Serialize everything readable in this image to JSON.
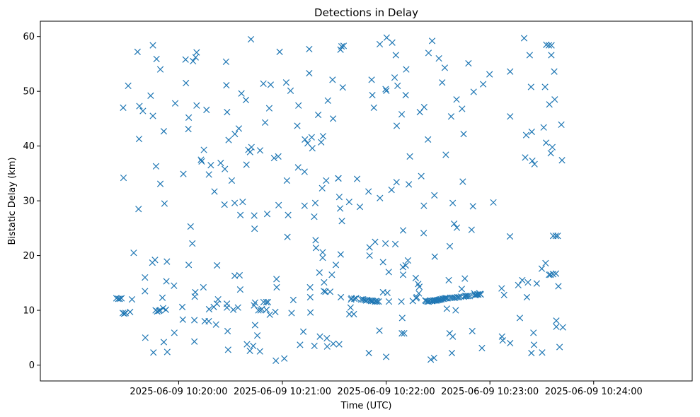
{
  "chart_data": {
    "type": "scatter",
    "title": "Detections in Delay",
    "xlabel": "Time (UTC)",
    "ylabel": "Bistatic Delay (km)",
    "marker": "x",
    "color": "#1f77b4",
    "grid": false,
    "x_unit": "seconds after 2025-06-09 10:20:00 UTC",
    "xlim": [
      -80,
      297
    ],
    "ylim": [
      -2.9,
      62.8
    ],
    "x_ticks": [
      {
        "value": 0,
        "label": "2025-06-09 10:20:00"
      },
      {
        "value": 60,
        "label": "2025-06-09 10:21:00"
      },
      {
        "value": 120,
        "label": "2025-06-09 10:22:00"
      },
      {
        "value": 180,
        "label": "2025-06-09 10:23:00"
      },
      {
        "value": 240,
        "label": "2025-06-09 10:24:00"
      }
    ],
    "y_ticks": [
      0,
      10,
      20,
      30,
      40,
      50,
      60
    ],
    "points": [
      [
        -36.0,
        12.2
      ],
      [
        -34.9,
        12.1
      ],
      [
        -34.1,
        12.1
      ],
      [
        -33.1,
        12.2
      ],
      [
        -32.3,
        9.5
      ],
      [
        -31.5,
        9.4
      ],
      [
        -30.7,
        9.5
      ],
      [
        -31.9,
        34.2
      ],
      [
        -32.1,
        47.0
      ],
      [
        -29.2,
        51.0
      ],
      [
        -28.1,
        9.7
      ],
      [
        -27.0,
        12.0
      ],
      [
        -26.0,
        20.5
      ],
      [
        -23.8,
        57.2
      ],
      [
        -23.2,
        28.5
      ],
      [
        -22.9,
        41.3
      ],
      [
        -22.7,
        47.3
      ],
      [
        -20.7,
        46.4
      ],
      [
        -19.5,
        13.5
      ],
      [
        -19.5,
        16.0
      ],
      [
        -19.3,
        5.0
      ],
      [
        -16.2,
        49.2
      ],
      [
        -15.2,
        18.7
      ],
      [
        -14.9,
        45.5
      ],
      [
        -14.9,
        58.4
      ],
      [
        -14.6,
        2.3
      ],
      [
        -13.7,
        19.2
      ],
      [
        -13.3,
        10.0
      ],
      [
        -13.1,
        36.3
      ],
      [
        -12.8,
        55.9
      ],
      [
        -12.4,
        9.8
      ],
      [
        -11.4,
        9.9
      ],
      [
        -10.8,
        10.0
      ],
      [
        -10.6,
        54.0
      ],
      [
        -10.6,
        33.1
      ],
      [
        -9.4,
        12.3
      ],
      [
        -9.0,
        10.4
      ],
      [
        -8.6,
        42.7
      ],
      [
        -8.6,
        4.2
      ],
      [
        -8.2,
        29.5
      ],
      [
        -7.4,
        10.1
      ],
      [
        -7.1,
        15.3
      ],
      [
        -6.8,
        18.9
      ],
      [
        -6.6,
        2.4
      ],
      [
        -2.7,
        14.5
      ],
      [
        -2.5,
        5.9
      ],
      [
        -2.0,
        47.8
      ],
      [
        2.1,
        10.6
      ],
      [
        2.4,
        8.3
      ],
      [
        2.7,
        34.9
      ],
      [
        4.0,
        55.8
      ],
      [
        4.2,
        51.5
      ],
      [
        5.8,
        18.3
      ],
      [
        5.6,
        43.1
      ],
      [
        5.8,
        45.2
      ],
      [
        6.9,
        25.3
      ],
      [
        7.9,
        22.2
      ],
      [
        8.3,
        55.5
      ],
      [
        9.1,
        4.3
      ],
      [
        9.1,
        8.2
      ],
      [
        9.3,
        12.5
      ],
      [
        9.6,
        13.3
      ],
      [
        9.8,
        56.2
      ],
      [
        10.4,
        47.4
      ],
      [
        10.4,
        57.1
      ],
      [
        12.9,
        37.5
      ],
      [
        13.3,
        37.2
      ],
      [
        14.3,
        14.2
      ],
      [
        14.6,
        39.3
      ],
      [
        15.1,
        8.0
      ],
      [
        16.1,
        46.6
      ],
      [
        17.4,
        8.0
      ],
      [
        17.5,
        34.8
      ],
      [
        17.6,
        10.2
      ],
      [
        18.6,
        36.5
      ],
      [
        20.3,
        10.6
      ],
      [
        20.7,
        31.7
      ],
      [
        21.6,
        7.4
      ],
      [
        22.1,
        11.2
      ],
      [
        22.2,
        18.2
      ],
      [
        22.8,
        12.0
      ],
      [
        24.3,
        36.9
      ],
      [
        26.5,
        29.3
      ],
      [
        26.7,
        35.8
      ],
      [
        27.4,
        55.4
      ],
      [
        27.6,
        51.1
      ],
      [
        27.9,
        11.2
      ],
      [
        27.9,
        10.5
      ],
      [
        28.0,
        46.2
      ],
      [
        28.3,
        6.2
      ],
      [
        28.6,
        2.8
      ],
      [
        28.9,
        41.1
      ],
      [
        30.7,
        33.7
      ],
      [
        31.6,
        10.1
      ],
      [
        32.4,
        16.3
      ],
      [
        32.4,
        29.6
      ],
      [
        32.5,
        42.2
      ],
      [
        34.3,
        10.5
      ],
      [
        34.8,
        43.2
      ],
      [
        35.2,
        16.4
      ],
      [
        35.6,
        13.8
      ],
      [
        35.7,
        27.4
      ],
      [
        36.3,
        49.6
      ],
      [
        37.0,
        29.8
      ],
      [
        38.9,
        48.4
      ],
      [
        39.2,
        36.6
      ],
      [
        39.5,
        3.8
      ],
      [
        40.3,
        39.3
      ],
      [
        41.2,
        2.6
      ],
      [
        41.3,
        38.9
      ],
      [
        41.8,
        59.5
      ],
      [
        42.1,
        39.8
      ],
      [
        43.1,
        3.5
      ],
      [
        43.6,
        10.9
      ],
      [
        43.7,
        27.3
      ],
      [
        43.9,
        24.9
      ],
      [
        44.2,
        11.4
      ],
      [
        44.2,
        7.3
      ],
      [
        45.5,
        5.4
      ],
      [
        46.1,
        10.0
      ],
      [
        47.0,
        2.5
      ],
      [
        47.1,
        39.2
      ],
      [
        47.4,
        10.0
      ],
      [
        48.1,
        10.2
      ],
      [
        49.0,
        51.4
      ],
      [
        49.1,
        11.5
      ],
      [
        50.0,
        44.3
      ],
      [
        50.7,
        11.5
      ],
      [
        50.8,
        10.1
      ],
      [
        51.2,
        27.6
      ],
      [
        51.6,
        11.5
      ],
      [
        52.4,
        46.9
      ],
      [
        52.7,
        9.2
      ],
      [
        53.2,
        51.2
      ],
      [
        55.2,
        37.8
      ],
      [
        55.9,
        9.7
      ],
      [
        56.2,
        0.8
      ],
      [
        56.6,
        15.7
      ],
      [
        56.7,
        14.2
      ],
      [
        57.6,
        38.1
      ],
      [
        57.8,
        29.2
      ],
      [
        58.4,
        57.2
      ],
      [
        61.1,
        1.2
      ],
      [
        62.2,
        51.6
      ],
      [
        62.6,
        33.7
      ],
      [
        62.9,
        23.4
      ],
      [
        63.3,
        27.4
      ],
      [
        64.7,
        50.1
      ],
      [
        65.3,
        9.5
      ],
      [
        66.3,
        11.9
      ],
      [
        68.6,
        43.7
      ],
      [
        69.1,
        36.1
      ],
      [
        69.3,
        47.4
      ],
      [
        70.2,
        3.7
      ],
      [
        72.1,
        6.1
      ],
      [
        72.8,
        29.1
      ],
      [
        72.8,
        35.3
      ],
      [
        73.0,
        41.2
      ],
      [
        74.6,
        40.5
      ],
      [
        75.5,
        57.7
      ],
      [
        75.5,
        53.3
      ],
      [
        76.0,
        14.2
      ],
      [
        76.1,
        12.4
      ],
      [
        76.2,
        9.6
      ],
      [
        76.9,
        41.6
      ],
      [
        77.3,
        39.6
      ],
      [
        78.4,
        27.1
      ],
      [
        78.5,
        3.5
      ],
      [
        79.0,
        29.6
      ],
      [
        79.2,
        22.8
      ],
      [
        79.4,
        21.4
      ],
      [
        80.7,
        45.7
      ],
      [
        81.4,
        16.9
      ],
      [
        81.7,
        5.2
      ],
      [
        82.4,
        40.7
      ],
      [
        83.0,
        32.3
      ],
      [
        83.3,
        19.6
      ],
      [
        83.3,
        20.6
      ],
      [
        83.5,
        41.8
      ],
      [
        84.0,
        13.5
      ],
      [
        84.1,
        15.1
      ],
      [
        84.9,
        13.4
      ],
      [
        85.3,
        33.7
      ],
      [
        85.7,
        4.9
      ],
      [
        85.9,
        3.4
      ],
      [
        86.3,
        48.3
      ],
      [
        87.6,
        13.4
      ],
      [
        88.6,
        16.5
      ],
      [
        89.0,
        52.1
      ],
      [
        89.3,
        45.0
      ],
      [
        89.4,
        3.9
      ],
      [
        90.9,
        18.3
      ],
      [
        92.3,
        34.1
      ],
      [
        92.4,
        34.1
      ],
      [
        92.8,
        3.8
      ],
      [
        92.9,
        30.7
      ],
      [
        93.4,
        28.6
      ],
      [
        93.6,
        57.6
      ],
      [
        93.7,
        20.2
      ],
      [
        93.8,
        12.4
      ],
      [
        94.2,
        58.2
      ],
      [
        94.4,
        26.3
      ],
      [
        94.9,
        50.7
      ],
      [
        95.4,
        58.3
      ],
      [
        98.6,
        29.8
      ],
      [
        98.7,
        9.3
      ],
      [
        99.4,
        10.5
      ],
      [
        99.7,
        12.0
      ],
      [
        100.0,
        12.2
      ],
      [
        101.3,
        9.3
      ],
      [
        101.6,
        12.1
      ],
      [
        102.6,
        12.2
      ],
      [
        103.2,
        34.0
      ],
      [
        104.8,
        28.9
      ],
      [
        105.6,
        12.0
      ],
      [
        106.6,
        12.0
      ],
      [
        107.5,
        11.9
      ],
      [
        108.4,
        11.8
      ],
      [
        109.1,
        11.9
      ],
      [
        109.8,
        31.7
      ],
      [
        110.0,
        2.2
      ],
      [
        110.4,
        11.8
      ],
      [
        110.4,
        21.5
      ],
      [
        110.4,
        20.0
      ],
      [
        111.3,
        11.7
      ],
      [
        111.6,
        11.8
      ],
      [
        111.6,
        52.1
      ],
      [
        112.0,
        49.3
      ],
      [
        112.3,
        11.7
      ],
      [
        112.9,
        47.0
      ],
      [
        113.6,
        11.6
      ],
      [
        113.6,
        22.5
      ],
      [
        114.1,
        11.7
      ],
      [
        114.8,
        11.6
      ],
      [
        115.7,
        11.6
      ],
      [
        116.1,
        6.3
      ],
      [
        116.3,
        58.6
      ],
      [
        116.4,
        30.5
      ],
      [
        118.2,
        13.3
      ],
      [
        118.2,
        18.8
      ],
      [
        119.6,
        22.2
      ],
      [
        119.7,
        50.4
      ],
      [
        120.0,
        1.5
      ],
      [
        120.1,
        50.1
      ],
      [
        120.3,
        59.8
      ],
      [
        120.7,
        13.2
      ],
      [
        121.5,
        17.0
      ],
      [
        121.6,
        11.6
      ],
      [
        123.1,
        32.0
      ],
      [
        123.5,
        58.9
      ],
      [
        124.9,
        52.5
      ],
      [
        125.3,
        22.1
      ],
      [
        125.6,
        56.6
      ],
      [
        126.0,
        33.4
      ],
      [
        126.1,
        43.7
      ],
      [
        126.6,
        51.0
      ],
      [
        128.8,
        11.6
      ],
      [
        129.0,
        45.8
      ],
      [
        129.1,
        5.8
      ],
      [
        129.3,
        8.6
      ],
      [
        129.7,
        17.9
      ],
      [
        129.8,
        24.6
      ],
      [
        129.8,
        16.5
      ],
      [
        130.4,
        5.8
      ],
      [
        131.3,
        49.3
      ],
      [
        131.3,
        18.2
      ],
      [
        131.6,
        54.0
      ],
      [
        132.6,
        19.1
      ],
      [
        133.1,
        33.0
      ],
      [
        133.7,
        38.1
      ],
      [
        135.4,
        11.7
      ],
      [
        137.1,
        15.9
      ],
      [
        137.4,
        12.2
      ],
      [
        137.7,
        12.4
      ],
      [
        138.5,
        14.8
      ],
      [
        138.9,
        13.1
      ],
      [
        139.2,
        14.3
      ],
      [
        139.5,
        46.2
      ],
      [
        140.3,
        34.5
      ],
      [
        141.7,
        24.1
      ],
      [
        141.8,
        29.1
      ],
      [
        142.0,
        47.1
      ],
      [
        142.6,
        11.8
      ],
      [
        143.2,
        11.7
      ],
      [
        143.9,
        11.6
      ],
      [
        144.2,
        41.2
      ],
      [
        144.5,
        57.0
      ],
      [
        144.6,
        11.6
      ],
      [
        145.2,
        11.7
      ],
      [
        145.8,
        1.0
      ],
      [
        146.3,
        11.7
      ],
      [
        146.6,
        59.2
      ],
      [
        146.8,
        11.7
      ],
      [
        147.4,
        11.8
      ],
      [
        147.7,
        1.3
      ],
      [
        147.9,
        31.0
      ],
      [
        148.1,
        19.8
      ],
      [
        148.1,
        11.8
      ],
      [
        148.6,
        11.8
      ],
      [
        149.3,
        11.8
      ],
      [
        149.9,
        11.9
      ],
      [
        150.5,
        56.0
      ],
      [
        150.6,
        11.9
      ],
      [
        151.1,
        12.0
      ],
      [
        151.8,
        12.0
      ],
      [
        152.4,
        51.6
      ],
      [
        152.6,
        12.1
      ],
      [
        153.3,
        12.1
      ],
      [
        153.9,
        54.3
      ],
      [
        154.1,
        12.2
      ],
      [
        154.5,
        38.4
      ],
      [
        154.7,
        12.2
      ],
      [
        155.1,
        10.3
      ],
      [
        155.5,
        12.2
      ],
      [
        156.2,
        15.5
      ],
      [
        156.7,
        5.8
      ],
      [
        156.8,
        21.7
      ],
      [
        157.1,
        12.3
      ],
      [
        157.6,
        45.4
      ],
      [
        158.0,
        2.2
      ],
      [
        158.0,
        12.3
      ],
      [
        158.5,
        29.6
      ],
      [
        158.5,
        5.2
      ],
      [
        159.0,
        12.3
      ],
      [
        159.3,
        25.8
      ],
      [
        159.9,
        12.3
      ],
      [
        160.2,
        10.0
      ],
      [
        160.7,
        48.5
      ],
      [
        160.9,
        25.1
      ],
      [
        161.2,
        12.4
      ],
      [
        162.0,
        12.4
      ],
      [
        163.2,
        12.5
      ],
      [
        163.7,
        13.9
      ],
      [
        163.9,
        46.8
      ],
      [
        164.3,
        33.5
      ],
      [
        164.8,
        42.2
      ],
      [
        165.0,
        12.5
      ],
      [
        165.5,
        15.8
      ],
      [
        165.8,
        12.6
      ],
      [
        166.5,
        12.6
      ],
      [
        167.3,
        12.6
      ],
      [
        167.6,
        55.1
      ],
      [
        168.3,
        12.6
      ],
      [
        169.4,
        24.7
      ],
      [
        169.8,
        6.2
      ],
      [
        170.2,
        29.0
      ],
      [
        170.6,
        49.9
      ],
      [
        170.9,
        13.1
      ],
      [
        171.2,
        12.8
      ],
      [
        171.9,
        12.8
      ],
      [
        172.7,
        12.9
      ],
      [
        173.3,
        12.9
      ],
      [
        174.3,
        13.0
      ],
      [
        174.7,
        12.9
      ],
      [
        175.4,
        3.1
      ],
      [
        176.1,
        51.3
      ],
      [
        179.8,
        53.1
      ],
      [
        182.0,
        29.7
      ],
      [
        186.8,
        14.0
      ],
      [
        187.0,
        5.2
      ],
      [
        187.4,
        4.5
      ],
      [
        188.2,
        12.8
      ],
      [
        191.6,
        23.5
      ],
      [
        191.7,
        45.4
      ],
      [
        191.7,
        53.6
      ],
      [
        191.7,
        4.0
      ],
      [
        196.4,
        14.6
      ],
      [
        197.3,
        8.6
      ],
      [
        198.7,
        15.5
      ],
      [
        199.8,
        59.7
      ],
      [
        200.4,
        37.9
      ],
      [
        201.0,
        42.0
      ],
      [
        201.4,
        12.4
      ],
      [
        202.0,
        15.1
      ],
      [
        203.0,
        56.6
      ],
      [
        203.8,
        50.8
      ],
      [
        204.0,
        2.2
      ],
      [
        204.2,
        42.6
      ],
      [
        204.5,
        37.3
      ],
      [
        205.2,
        5.9
      ],
      [
        205.5,
        3.7
      ],
      [
        205.8,
        36.7
      ],
      [
        207.1,
        14.9
      ],
      [
        210.0,
        17.6
      ],
      [
        210.2,
        2.3
      ],
      [
        211.1,
        43.4
      ],
      [
        211.9,
        50.8
      ],
      [
        212.2,
        18.6
      ],
      [
        212.5,
        40.6
      ],
      [
        212.6,
        58.5
      ],
      [
        214.1,
        58.4
      ],
      [
        214.2,
        16.5
      ],
      [
        214.4,
        47.6
      ],
      [
        215.0,
        16.5
      ],
      [
        215.2,
        38.7
      ],
      [
        215.5,
        56.6
      ],
      [
        215.6,
        58.4
      ],
      [
        216.1,
        39.8
      ],
      [
        216.5,
        16.6
      ],
      [
        216.6,
        23.6
      ],
      [
        217.2,
        53.6
      ],
      [
        217.5,
        48.5
      ],
      [
        218.1,
        23.6
      ],
      [
        218.2,
        16.7
      ],
      [
        218.4,
        8.1
      ],
      [
        218.4,
        7.0
      ],
      [
        219.2,
        23.6
      ],
      [
        219.6,
        14.4
      ],
      [
        220.3,
        3.3
      ],
      [
        221.3,
        43.9
      ],
      [
        221.7,
        37.4
      ],
      [
        222.2,
        6.9
      ]
    ]
  }
}
